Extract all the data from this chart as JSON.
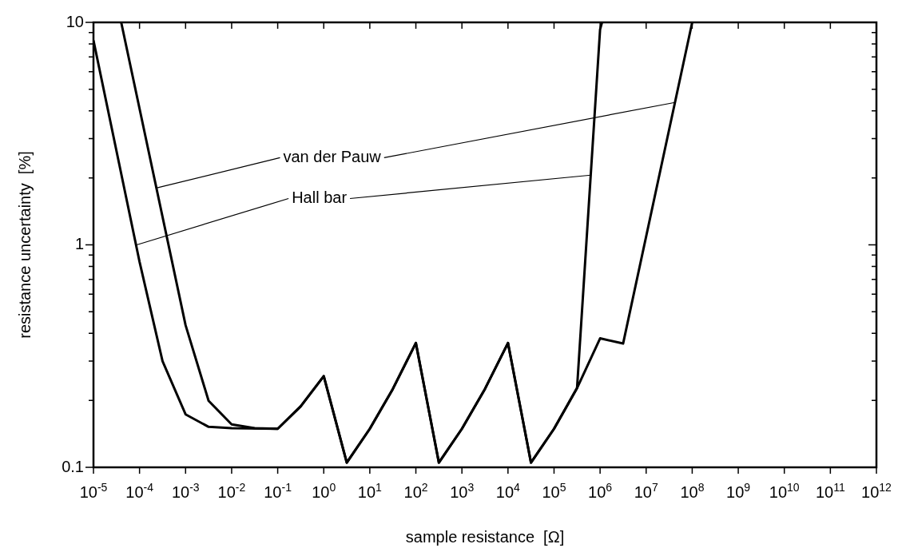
{
  "chart_data": {
    "type": "line",
    "xlabel": "sample resistance  [Ω]",
    "ylabel": "resistance uncertainty  [%]",
    "log": "xy",
    "grid": false,
    "legend": false,
    "marker": "none",
    "line_style": "solid",
    "xlim": [
      1e-05,
      1000000000000.0
    ],
    "ylim": [
      0.1,
      10
    ],
    "xticks": [
      {
        "value": 1e-05,
        "label": "10$^{-5}$"
      },
      {
        "value": 0.0001,
        "label": "10$^{-4}$"
      },
      {
        "value": 0.001,
        "label": "10$^{-3}$"
      },
      {
        "value": 0.01,
        "label": "10$^{-2}$"
      },
      {
        "value": 0.1,
        "label": "10$^{-1}$"
      },
      {
        "value": 1,
        "label": "10$^{0}$"
      },
      {
        "value": 10,
        "label": "10$^{1}$"
      },
      {
        "value": 100,
        "label": "10$^{2}$"
      },
      {
        "value": 1000.0,
        "label": "10$^{3}$"
      },
      {
        "value": 10000.0,
        "label": "10$^{4}$"
      },
      {
        "value": 100000.0,
        "label": "10$^{5}$"
      },
      {
        "value": 1000000.0,
        "label": "10$^{6}$"
      },
      {
        "value": 10000000.0,
        "label": "10$^{7}$"
      },
      {
        "value": 100000000.0,
        "label": "10$^{8}$"
      },
      {
        "value": 1000000000.0,
        "label": "10$^{9}$"
      },
      {
        "value": 10000000000.0,
        "label": "10$^{10}$"
      },
      {
        "value": 100000000000.0,
        "label": "10$^{11}$"
      },
      {
        "value": 1000000000000.0,
        "label": "10$^{12}$"
      }
    ],
    "yticks": [
      0.1,
      {
        "value": 0.2,
        "label": null
      },
      {
        "value": 0.3,
        "label": null
      },
      {
        "value": 0.4,
        "label": null
      },
      {
        "value": 0.5,
        "label": null
      },
      {
        "value": 0.6,
        "label": null
      },
      {
        "value": 0.7,
        "label": null
      },
      {
        "value": 0.8,
        "label": null
      },
      {
        "value": 0.9,
        "label": null
      },
      1,
      {
        "value": 2,
        "label": null
      },
      {
        "value": 3,
        "label": null
      },
      {
        "value": 4,
        "label": null
      },
      {
        "value": 5,
        "label": null
      },
      {
        "value": 6,
        "label": null
      },
      {
        "value": 7,
        "label": null
      },
      {
        "value": 8,
        "label": null
      },
      {
        "value": 9,
        "label": null
      },
      10
    ],
    "series": [
      {
        "color": "#000000",
        "x": [
          1e-05,
          0.0001,
          0.000316,
          0.001,
          0.00316,
          0.01,
          0.1,
          0.316,
          1,
          3.16,
          10,
          31.6,
          100,
          316,
          1000.0,
          3160.0,
          10000.0,
          31600.0,
          100000.0,
          316000.0,
          1000000.0,
          1100000.0
        ],
        "values": [
          8.3,
          0.84,
          0.3,
          0.173,
          0.152,
          0.15,
          0.149,
          0.188,
          0.257,
          0.105,
          0.149,
          0.225,
          0.362,
          0.105,
          0.149,
          0.225,
          0.362,
          0.105,
          0.149,
          0.227,
          9.3,
          10
        ]
      },
      {
        "color": "#000000",
        "x": [
          4e-05,
          0.001,
          0.00316,
          0.01,
          0.0316,
          0.1,
          0.316,
          1,
          3.16,
          10,
          31.6,
          100,
          316,
          1000.0,
          3160.0,
          10000.0,
          31600.0,
          100000.0,
          316000.0,
          1000000.0,
          3160000.0,
          100000000.0
        ],
        "values": [
          10,
          0.435,
          0.199,
          0.156,
          0.15,
          0.149,
          0.188,
          0.257,
          0.105,
          0.149,
          0.225,
          0.362,
          0.105,
          0.149,
          0.225,
          0.362,
          0.105,
          0.149,
          0.227,
          0.38,
          0.36,
          10
        ]
      }
    ],
    "annotations": [
      {
        "text": "van der Pauw",
        "x": 0.00023,
        "y": 1.8
      },
      {
        "text": "Hall bar",
        "x": 8.7e-05,
        "y": 1.0
      }
    ]
  }
}
